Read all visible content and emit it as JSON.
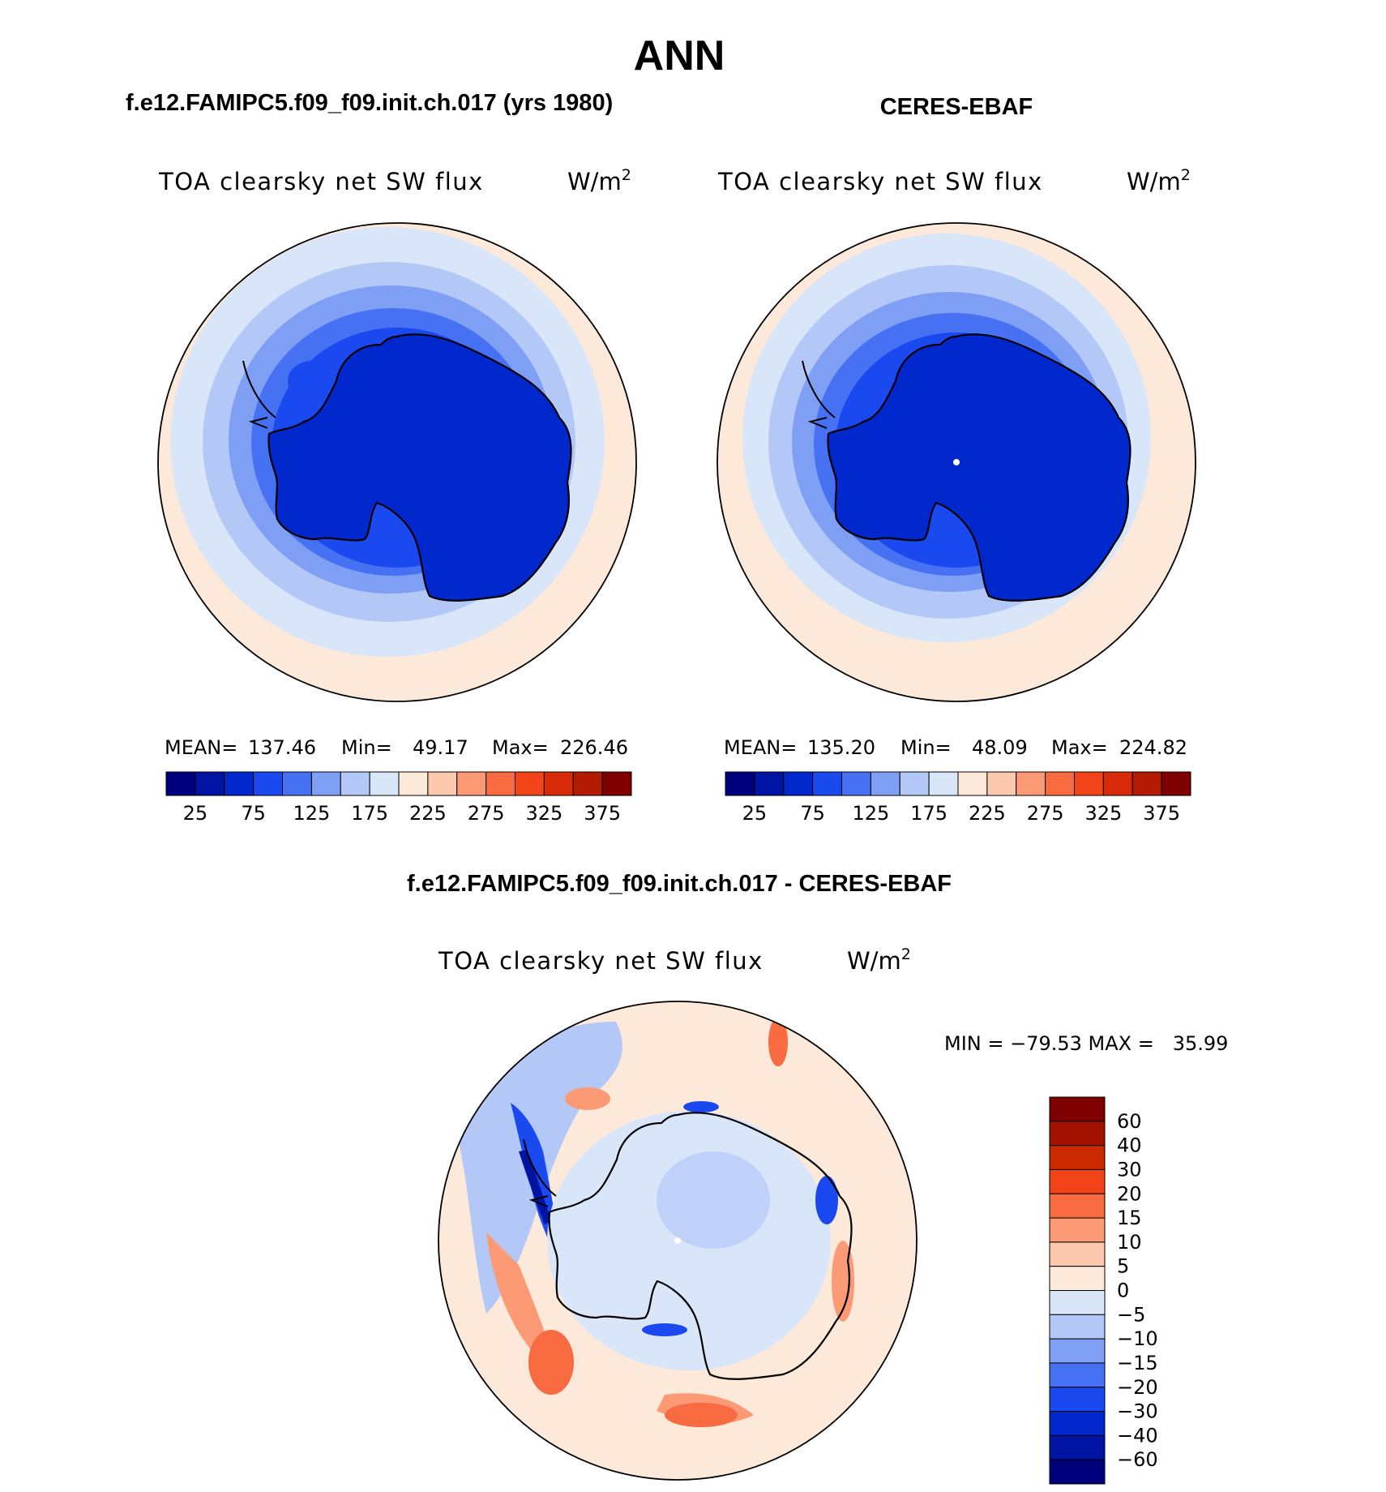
{
  "figure": {
    "season": "ANN",
    "panels": [
      {
        "id": "model",
        "header": "f.e12.FAMIPC5.f09_f09.init.ch.017 (yrs 1980)",
        "field": "TOA clearsky net SW flux",
        "units_base": "W/m",
        "units_exp": "2",
        "stats": {
          "mean_label": "MEAN=",
          "mean": "137.46",
          "min_label": "Min=",
          "min": "49.17",
          "max_label": "Max=",
          "max": "226.46"
        }
      },
      {
        "id": "obs",
        "header": "CERES-EBAF",
        "field": "TOA clearsky net SW flux",
        "units_base": "W/m",
        "units_exp": "2",
        "stats": {
          "mean_label": "MEAN=",
          "mean": "135.20",
          "min_label": "Min=",
          "min": "48.09",
          "max_label": "Max=",
          "max": "224.82"
        }
      }
    ],
    "diff": {
      "header": "f.e12.FAMIPC5.f09_f09.init.ch.017 - CERES-EBAF",
      "field": "TOA clearsky net SW flux",
      "units_base": "W/m",
      "units_exp": "2",
      "minmax": "MIN = −79.53 MAX =   35.99"
    }
  },
  "chart_data": {
    "type": "heatmap",
    "projection": "south-polar-stereographic",
    "abs_colorbar": {
      "tick_labels": [
        "25",
        "75",
        "125",
        "175",
        "225",
        "275",
        "325",
        "375"
      ],
      "colors": [
        "#00007f",
        "#0013a3",
        "#0028cc",
        "#1a49f0",
        "#4671f2",
        "#7f9ff5",
        "#b3c8f7",
        "#d9e6fa",
        "#fde9d9",
        "#fcc8ae",
        "#fc9a75",
        "#f86a3f",
        "#f24418",
        "#d82a08",
        "#b21a02",
        "#7f0000"
      ]
    },
    "diff_colorbar": {
      "labels": [
        "60",
        "40",
        "30",
        "20",
        "15",
        "10",
        "5",
        "0",
        "−5",
        "−10",
        "−15",
        "−20",
        "−30",
        "−40",
        "−60"
      ],
      "colors": [
        "#7f0000",
        "#a31200",
        "#cc2800",
        "#f24418",
        "#f86a3f",
        "#fc9a75",
        "#fcc8ae",
        "#fde9d9",
        "#d9e6fa",
        "#b3c8f7",
        "#7f9ff5",
        "#4671f2",
        "#1a49f0",
        "#0028cc",
        "#0013a3",
        "#00007f"
      ]
    }
  }
}
